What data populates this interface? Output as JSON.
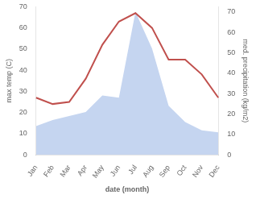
{
  "chart_data": {
    "type": "line",
    "categories": [
      "Jan",
      "Feb",
      "Mar",
      "Apr",
      "May",
      "Jun",
      "Jul",
      "Aug",
      "Sep",
      "Oct",
      "Nov",
      "Dec"
    ],
    "xlabel": "date (month)",
    "ylabel": "max temp (C)",
    "y2label": "med. precipitation (kg/m2)",
    "series": [
      {
        "type": "area",
        "color": "#c5d5f0",
        "axis": "y2",
        "values": [
          14,
          17,
          19,
          21,
          29,
          28,
          70,
          52,
          24,
          16,
          12,
          11
        ]
      },
      {
        "type": "line",
        "color": "#c0504d",
        "values": [
          27,
          24,
          25,
          36,
          52,
          63,
          67,
          60,
          45,
          45,
          38,
          27
        ]
      }
    ],
    "ylim": [
      0,
      70
    ],
    "yticks": [
      0,
      10,
      20,
      30,
      40,
      50,
      60,
      70
    ],
    "y2lim": [
      0,
      72.5
    ],
    "y2ticks": [
      0,
      10,
      20,
      30,
      40,
      50,
      60,
      70
    ],
    "grid": false
  }
}
